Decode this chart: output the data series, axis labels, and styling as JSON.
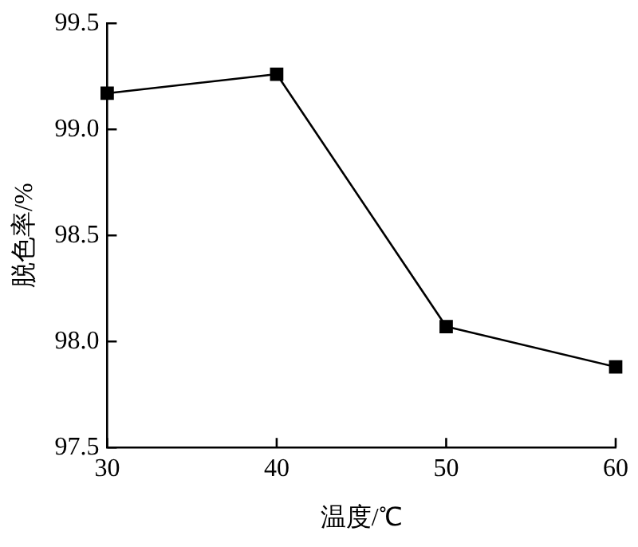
{
  "chart_data": {
    "type": "line",
    "xlabel": "温度/℃",
    "ylabel": "脱色率/%",
    "x": [
      30,
      40,
      50,
      60
    ],
    "series": [
      {
        "color": "#000000",
        "values": [
          99.17,
          99.26,
          98.07,
          97.88
        ]
      }
    ],
    "xlim": [
      30,
      60
    ],
    "xticks": [
      30,
      40,
      50,
      60
    ],
    "ylim": [
      97.5,
      99.5
    ],
    "yticks": [
      {
        "value": 97.5,
        "label": "97.5"
      },
      {
        "value": 98,
        "label": "98.0"
      },
      {
        "value": 98.5,
        "label": "98.5"
      },
      {
        "value": 99,
        "label": "99.0"
      },
      {
        "value": 99.5,
        "label": "99.5"
      }
    ],
    "grid": false,
    "legend": false,
    "marker": "square",
    "line_style": "solid"
  }
}
